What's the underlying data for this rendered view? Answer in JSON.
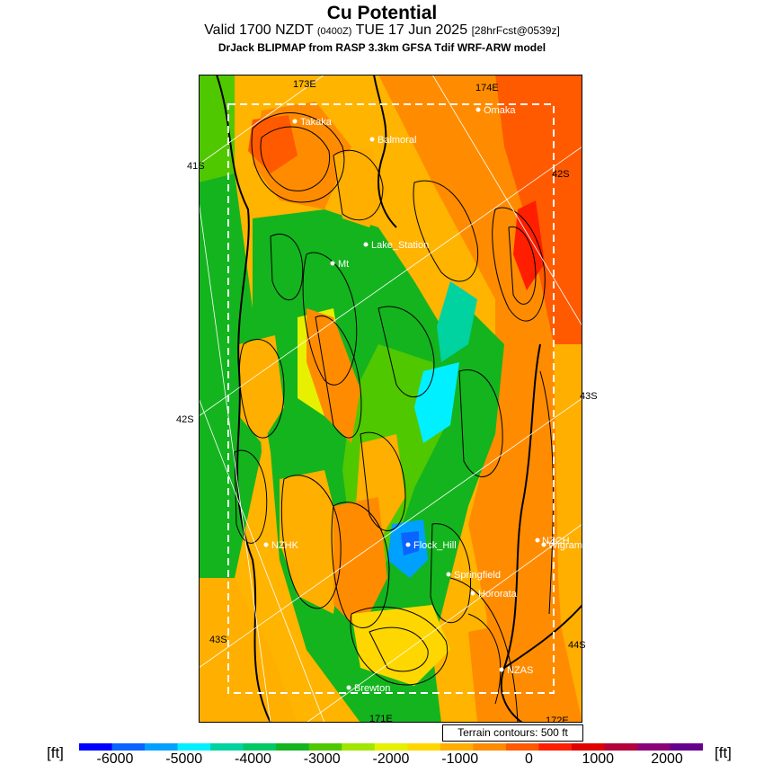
{
  "header": {
    "title": "Cu Potential",
    "valid_prefix": "Valid 1700 NZDT",
    "utc": "(0400Z)",
    "valid_date": "TUE 17 Jun 2025",
    "forecast": "[28hrFcst@0539z]",
    "model": "DrJack BLIPMAP from RASP 3.3km GFSA Tdif WRF-ARW model"
  },
  "map": {
    "lat_labels": [
      "41S",
      "42S",
      "42S",
      "43S",
      "43S",
      "44S"
    ],
    "lon_labels": [
      "173E",
      "174E",
      "171E",
      "172E"
    ],
    "places": [
      "Takaka",
      "Balmoral",
      "Omaka",
      "Lake_Station",
      "Mt",
      "NZHK",
      "Flock_Hill",
      "NZCH",
      "Wigram",
      "Springfield",
      "Hororata",
      "NZAS",
      "Brewton"
    ],
    "terrain_note": "Terrain contours: 500 ft"
  },
  "colorbar": {
    "unit_left": "[ft]",
    "unit_right": "[ft]",
    "tick_labels": [
      "-6000",
      "-5000",
      "-4000",
      "-3000",
      "-2000",
      "-1000",
      "0",
      "1000",
      "2000"
    ],
    "colors": [
      "#0000ff",
      "#0a64ff",
      "#00a0ff",
      "#00f0ff",
      "#00d2a0",
      "#00c864",
      "#14b41e",
      "#50c800",
      "#a0e600",
      "#e6f000",
      "#ffd700",
      "#ffaf00",
      "#ff8c00",
      "#ff5a00",
      "#ff1e00",
      "#e00000",
      "#b4003c",
      "#8c0078",
      "#64008c"
    ]
  }
}
